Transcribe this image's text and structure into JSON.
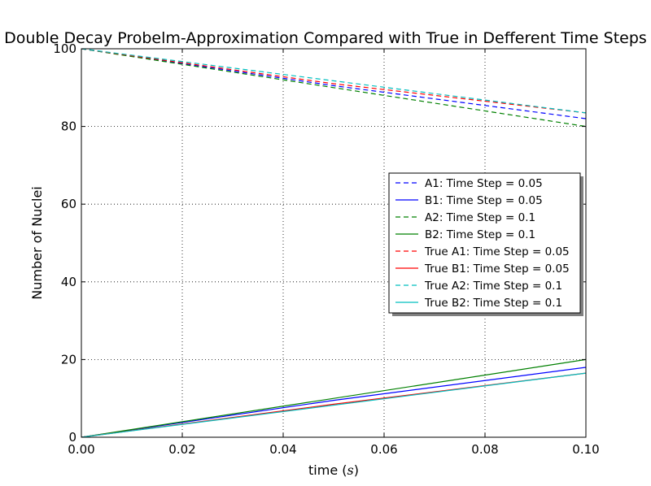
{
  "chart_data": {
    "type": "line",
    "title": "Double Decay Probelm-Approximation Compared with True in Defferent Time Steps",
    "xlabel": "time",
    "xlabel_unit": "s",
    "ylabel": "Number of Nuclei",
    "xlim": [
      0.0,
      0.1
    ],
    "ylim": [
      0,
      100
    ],
    "x_ticks": [
      "0.00",
      "0.02",
      "0.04",
      "0.06",
      "0.08",
      "0.10"
    ],
    "y_ticks": [
      "0",
      "20",
      "40",
      "60",
      "80",
      "100"
    ],
    "grid": true,
    "legend_position": "center-right",
    "series": [
      {
        "name": "A1: Time Step = 0.05",
        "color": "#0000ff",
        "style": "dashed",
        "x": [
          0.0,
          0.05,
          0.1
        ],
        "y": [
          100,
          90.5,
          82.0
        ]
      },
      {
        "name": "B1: Time Step = 0.05",
        "color": "#0000ff",
        "style": "solid",
        "x": [
          0.0,
          0.05,
          0.1
        ],
        "y": [
          0,
          9.5,
          18.0
        ]
      },
      {
        "name": "A2: Time Step = 0.1",
        "color": "#008000",
        "style": "dashed",
        "x": [
          0.0,
          0.1
        ],
        "y": [
          100,
          80.0
        ]
      },
      {
        "name": "B2: Time Step = 0.1",
        "color": "#008000",
        "style": "solid",
        "x": [
          0.0,
          0.1
        ],
        "y": [
          0,
          20.0
        ]
      },
      {
        "name": "True A1: Time Step = 0.05",
        "color": "#ff0000",
        "style": "dashed",
        "x": [
          0.0,
          0.05,
          0.1
        ],
        "y": [
          100,
          91.0,
          83.5
        ]
      },
      {
        "name": "True B1: Time Step = 0.05",
        "color": "#ff0000",
        "style": "solid",
        "x": [
          0.0,
          0.05,
          0.1
        ],
        "y": [
          0,
          8.5,
          16.5
        ]
      },
      {
        "name": "True A2: Time Step = 0.1",
        "color": "#00bfbf",
        "style": "dashed",
        "x": [
          0.0,
          0.1
        ],
        "y": [
          100,
          83.5
        ]
      },
      {
        "name": "True B2: Time Step = 0.1",
        "color": "#00bfbf",
        "style": "solid",
        "x": [
          0.0,
          0.1
        ],
        "y": [
          0,
          16.5
        ]
      }
    ]
  }
}
